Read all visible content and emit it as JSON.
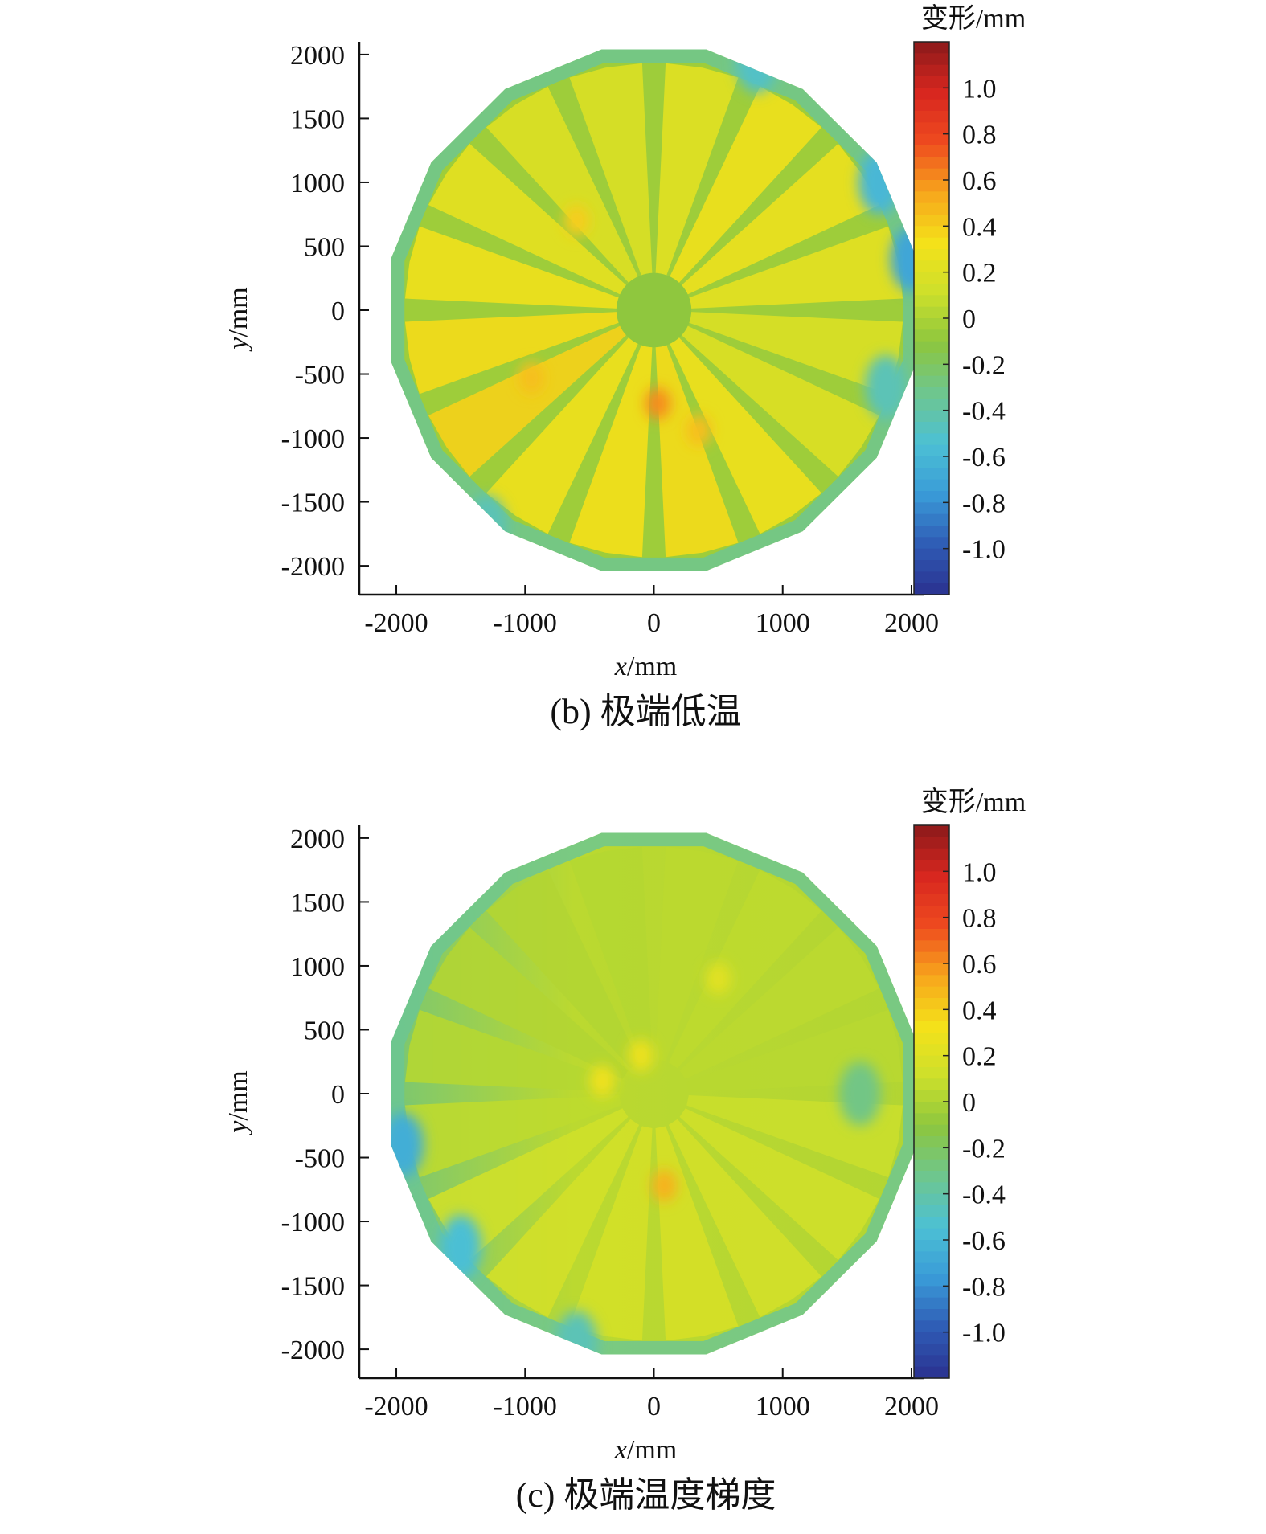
{
  "chart_data": [
    {
      "type": "heatmap",
      "panel": "b",
      "caption": "(b) 极端低温",
      "xlabel_var": "x",
      "xlabel_unit": "/mm",
      "ylabel_var": "y",
      "ylabel_unit": "/mm",
      "xlim": [
        -2100,
        2100
      ],
      "ylim": [
        -2100,
        2100
      ],
      "x_ticks": [
        -2000,
        -1000,
        0,
        1000,
        2000
      ],
      "x_tick_labels": [
        "-2000",
        "-1000",
        "0",
        "1000",
        "2000"
      ],
      "y_ticks": [
        2000,
        1500,
        1000,
        500,
        0,
        -500,
        -1000,
        -1500,
        -2000
      ],
      "y_tick_labels": [
        "2000",
        "1500",
        "1000",
        "500",
        "0",
        "-500",
        "-1000",
        "-1500",
        "-2000"
      ],
      "colorbar": {
        "title": "变形/mm",
        "range": [
          -1.2,
          1.2
        ],
        "ticks": [
          1.0,
          0.8,
          0.6,
          0.4,
          0.2,
          0,
          -0.2,
          -0.4,
          -0.6,
          -0.8,
          -1.0
        ],
        "tick_labels": [
          "1.0",
          "0.8",
          "0.6",
          "0.4",
          "0.2",
          "0",
          "-0.2",
          "-0.4",
          "-0.6",
          "-0.8",
          "-1.0"
        ],
        "colormap": [
          "#2b3190",
          "#2f5cb5",
          "#3a9bd8",
          "#4cc0d4",
          "#6ec68f",
          "#8cc63f",
          "#cde02b",
          "#f4e11a",
          "#f7a51c",
          "#ee4a1f",
          "#d7261f",
          "#8b1a1a"
        ]
      },
      "field": {
        "outline": "polygon, 16 sides, radius 2080",
        "base_value": -0.05,
        "center_region_radius": 280,
        "center_value": -0.1,
        "rib_count": 16,
        "rib_value": -0.1,
        "panel_values": [
          0.22,
          0.3,
          0.28,
          0.24,
          0.18,
          0.2,
          0.3,
          0.35,
          0.33,
          0.3,
          0.38,
          0.35,
          0.3,
          0.25,
          0.2,
          0.18
        ],
        "rim_value": -0.35,
        "hotspots": [
          {
            "x": 30,
            "y": -730,
            "value": 0.6
          },
          {
            "x": 350,
            "y": -940,
            "value": 0.45
          },
          {
            "x": -950,
            "y": -530,
            "value": 0.45
          },
          {
            "x": -600,
            "y": 700,
            "value": 0.4
          }
        ],
        "coldspots": [
          {
            "x": 2000,
            "y": 400,
            "value": -0.7
          },
          {
            "x": 1750,
            "y": 1000,
            "value": -0.6
          },
          {
            "x": 800,
            "y": 1950,
            "value": -0.5
          },
          {
            "x": -1300,
            "y": -1700,
            "value": -0.45
          },
          {
            "x": 1800,
            "y": -600,
            "value": -0.45
          }
        ]
      }
    },
    {
      "type": "heatmap",
      "panel": "c",
      "caption": "(c) 极端温度梯度",
      "xlabel_var": "x",
      "xlabel_unit": "/mm",
      "ylabel_var": "y",
      "ylabel_unit": "/mm",
      "xlim": [
        -2100,
        2100
      ],
      "ylim": [
        -2100,
        2100
      ],
      "x_ticks": [
        -2000,
        -1000,
        0,
        1000,
        2000
      ],
      "x_tick_labels": [
        "-2000",
        "-1000",
        "0",
        "1000",
        "2000"
      ],
      "y_ticks": [
        2000,
        1500,
        1000,
        500,
        0,
        -500,
        -1000,
        -1500,
        -2000
      ],
      "y_tick_labels": [
        "2000",
        "1500",
        "1000",
        "500",
        "0",
        "-500",
        "-1000",
        "-1500",
        "-2000"
      ],
      "colorbar": {
        "title": "变形/mm",
        "range": [
          -1.2,
          1.2
        ],
        "ticks": [
          1.0,
          0.8,
          0.6,
          0.4,
          0.2,
          0,
          -0.2,
          -0.4,
          -0.6,
          -0.8,
          -1.0
        ],
        "tick_labels": [
          "1.0",
          "0.8",
          "0.6",
          "0.4",
          "0.2",
          "0",
          "-0.2",
          "-0.4",
          "-0.6",
          "-0.8",
          "-1.0"
        ],
        "colormap": [
          "#2b3190",
          "#2f5cb5",
          "#3a9bd8",
          "#4cc0d4",
          "#6ec68f",
          "#8cc63f",
          "#cde02b",
          "#f4e11a",
          "#f7a51c",
          "#ee4a1f",
          "#d7261f",
          "#8b1a1a"
        ]
      },
      "field": {
        "outline": "polygon, 16 sides, radius 2080",
        "base_value": 0.0,
        "gradient_west_value": -0.25,
        "gradient_east_value": 0.02,
        "rib_count": 16,
        "rib_value": -0.05,
        "panel_values": [
          0.05,
          0.06,
          0.05,
          0.04,
          0.1,
          0.12,
          0.14,
          0.16,
          0.15,
          0.14,
          0.12,
          0.06,
          0.03,
          0.02,
          0.02,
          0.03
        ],
        "rim_value": -0.35,
        "hotspots": [
          {
            "x": 80,
            "y": -720,
            "value": 0.5
          },
          {
            "x": -400,
            "y": 100,
            "value": 0.3
          },
          {
            "x": -100,
            "y": 300,
            "value": 0.28
          },
          {
            "x": 500,
            "y": 900,
            "value": 0.22
          }
        ],
        "coldspots": [
          {
            "x": -1950,
            "y": -400,
            "value": -0.65
          },
          {
            "x": -1500,
            "y": -1200,
            "value": -0.55
          },
          {
            "x": -600,
            "y": -1950,
            "value": -0.45
          },
          {
            "x": 1600,
            "y": 0,
            "value": -0.3
          }
        ]
      }
    }
  ]
}
